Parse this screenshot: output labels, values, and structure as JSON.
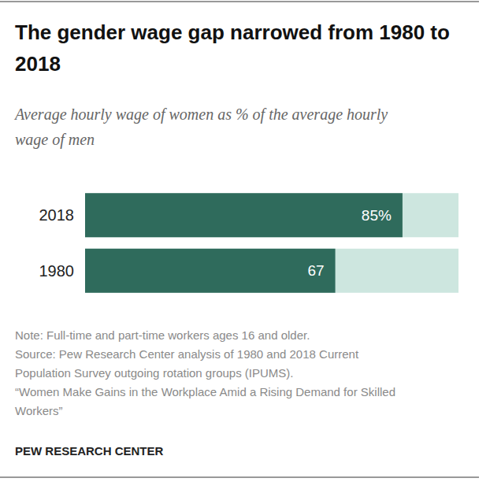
{
  "chart_data": {
    "type": "bar",
    "orientation": "horizontal",
    "title": "The gender wage gap narrowed from 1980 to 2018",
    "subtitle": "Average hourly wage of women as % of the average hourly wage of men",
    "categories": [
      "2018",
      "1980"
    ],
    "values": [
      85,
      67
    ],
    "value_labels": [
      "85%",
      "67"
    ],
    "data_labels": true,
    "color": "#2f6b5c",
    "xlim": [
      0,
      100
    ],
    "xticks": [
      0,
      100
    ],
    "tick_labels": "y",
    "grid": false,
    "annotations": [
      "Note: Full-time and part-time workers ages 16 and older.",
      "Source: Pew Research Center analysis of 1980 and 2018 Current Population Survey outgoing rotation groups (IPUMS).",
      "“Women Make Gains in the Workplace Amid a Rising Demand for Skilled Workers”",
      "PEW RESEARCH CENTER"
    ]
  }
}
